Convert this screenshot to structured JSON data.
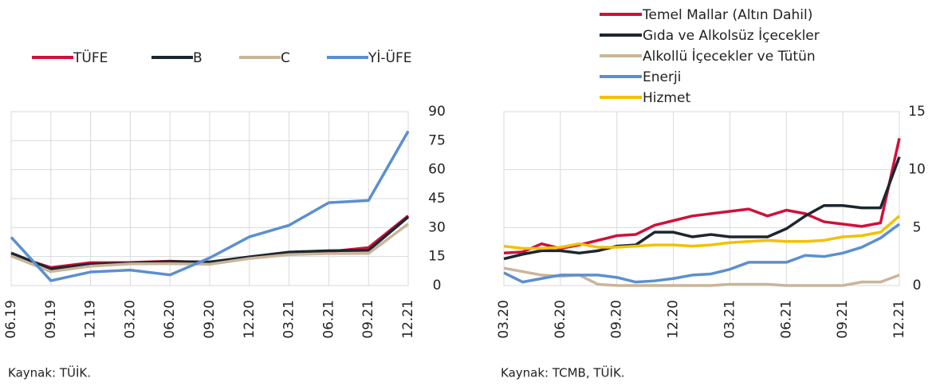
{
  "chart_data": [
    {
      "type": "line",
      "categories": [
        "06.19",
        "09.19",
        "12.19",
        "03.20",
        "06.20",
        "09.20",
        "12.20",
        "03.21",
        "06.21",
        "09.21",
        "12.21"
      ],
      "series": [
        {
          "name": "TÜFE",
          "color": "#d0103a",
          "values": [
            15.7,
            9.3,
            11.8,
            11.9,
            12.6,
            11.8,
            14.6,
            16.2,
            17.5,
            19.6,
            36.1
          ]
        },
        {
          "name": "B",
          "color": "#1c2630",
          "values": [
            16.8,
            8.6,
            11.0,
            11.5,
            12.4,
            12.2,
            14.8,
            17.3,
            18.0,
            18.2,
            35.5
          ]
        },
        {
          "name": "C",
          "color": "#c9b59b",
          "values": [
            15.3,
            7.2,
            10.0,
            11.2,
            11.3,
            11.0,
            14.0,
            16.0,
            16.5,
            16.6,
            31.9
          ]
        },
        {
          "name": "Yİ-ÜFE",
          "color": "#5b8fd0",
          "values": [
            25.0,
            2.5,
            7.0,
            8.0,
            5.5,
            14.3,
            25.2,
            31.2,
            42.9,
            44.0,
            79.9
          ]
        }
      ],
      "ylim": [
        0,
        90
      ],
      "yticks": [
        0,
        15,
        30,
        45,
        60,
        75,
        90
      ],
      "grid": true,
      "legend": "top",
      "source": "Kaynak: TÜİK."
    },
    {
      "type": "line",
      "categories": [
        "03.20",
        null,
        null,
        "06.20",
        null,
        null,
        "09.20",
        null,
        null,
        "12.20",
        null,
        null,
        "03.21",
        null,
        null,
        "06.21",
        null,
        null,
        "09.21",
        null,
        null,
        "12.21"
      ],
      "series": [
        {
          "name": "Temel Mallar (Altın Dahil)",
          "color": "#d0103a",
          "values": [
            2.8,
            2.9,
            3.6,
            3.2,
            3.5,
            3.9,
            4.3,
            4.4,
            5.2,
            5.6,
            6.0,
            6.2,
            6.4,
            6.6,
            6.0,
            6.5,
            6.2,
            5.5,
            5.3,
            5.1,
            5.4,
            12.7
          ]
        },
        {
          "name": "Gıda ve Alkolsüz İçecekler",
          "color": "#1c2630",
          "values": [
            2.3,
            2.7,
            3.0,
            3.0,
            2.8,
            3.0,
            3.4,
            3.5,
            4.6,
            4.6,
            4.2,
            4.4,
            4.2,
            4.2,
            4.2,
            4.9,
            6.0,
            6.9,
            6.9,
            6.7,
            6.7,
            11.1
          ]
        },
        {
          "name": "Alkollü İçecekler ve Tütün",
          "color": "#c9b59b",
          "values": [
            1.5,
            1.2,
            0.9,
            0.8,
            0.9,
            0.1,
            0,
            0,
            0,
            0,
            0,
            0,
            0.1,
            0.1,
            0.1,
            0,
            0,
            0,
            0,
            0.3,
            0.3,
            0.9
          ]
        },
        {
          "name": "Enerji",
          "color": "#5b8fd0",
          "values": [
            1.1,
            0.3,
            0.6,
            0.9,
            0.9,
            0.9,
            0.7,
            0.3,
            0.4,
            0.6,
            0.9,
            1.0,
            1.4,
            2.0,
            2.0,
            2.0,
            2.6,
            2.5,
            2.8,
            3.3,
            4.1,
            5.3
          ]
        },
        {
          "name": "Hizmet",
          "color": "#f2c100",
          "values": [
            3.4,
            3.2,
            3.2,
            3.3,
            3.6,
            3.3,
            3.3,
            3.4,
            3.5,
            3.5,
            3.4,
            3.5,
            3.7,
            3.8,
            3.9,
            3.8,
            3.8,
            3.9,
            4.2,
            4.3,
            4.6,
            6.0
          ]
        }
      ],
      "ylim": [
        0,
        15
      ],
      "yticks": [
        0,
        5,
        10,
        15
      ],
      "grid": true,
      "legend": "top-right",
      "source": "Kaynak: TCMB, TÜİK."
    }
  ]
}
